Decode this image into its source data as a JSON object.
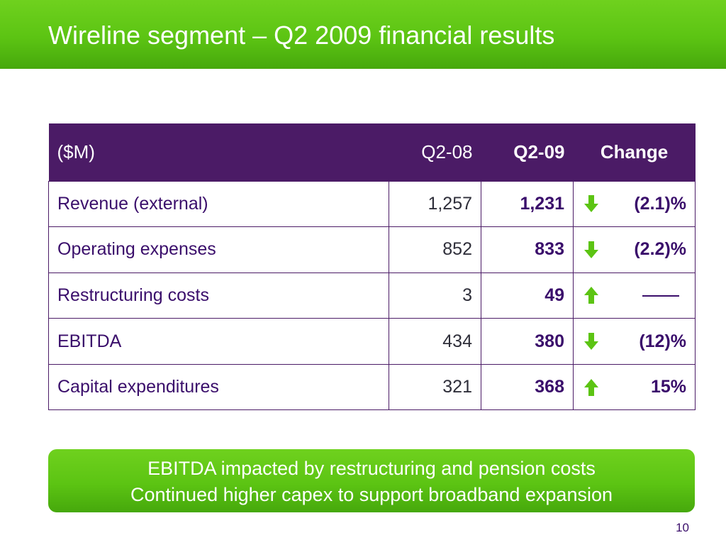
{
  "slide": {
    "title": "Wireline segment – Q2 2009 financial results",
    "page_number": "10"
  },
  "colors": {
    "green_accent": "#5cc413",
    "purple_header": "#4b1b66",
    "text_purple": "#3a0e6b",
    "arrow_green": "#5cc413"
  },
  "table": {
    "headers": {
      "label": "($M)",
      "q2_08": "Q2-08",
      "q2_09": "Q2-09",
      "change": "Change"
    },
    "rows": [
      {
        "label": "Revenue (external)",
        "q2_08": "1,257",
        "q2_09": "1,231",
        "direction": "down",
        "direction_icon": "arrow-down-icon",
        "change": "(2.1)%"
      },
      {
        "label": "Operating expenses",
        "q2_08": "852",
        "q2_09": "833",
        "direction": "down",
        "direction_icon": "arrow-down-icon",
        "change": "(2.2)%"
      },
      {
        "label": "Restructuring costs",
        "q2_08": "3",
        "q2_09": "49",
        "direction": "up",
        "direction_icon": "arrow-up-icon",
        "change": "——"
      },
      {
        "label": "EBITDA",
        "q2_08": "434",
        "q2_09": "380",
        "direction": "down",
        "direction_icon": "arrow-down-icon",
        "change": "(12)%"
      },
      {
        "label": "Capital expenditures",
        "q2_08": "321",
        "q2_09": "368",
        "direction": "up",
        "direction_icon": "arrow-up-icon",
        "change": "15%"
      }
    ]
  },
  "callout": {
    "lines": [
      "EBITDA impacted by restructuring and pension costs",
      "Continued higher capex to support broadband expansion"
    ]
  }
}
